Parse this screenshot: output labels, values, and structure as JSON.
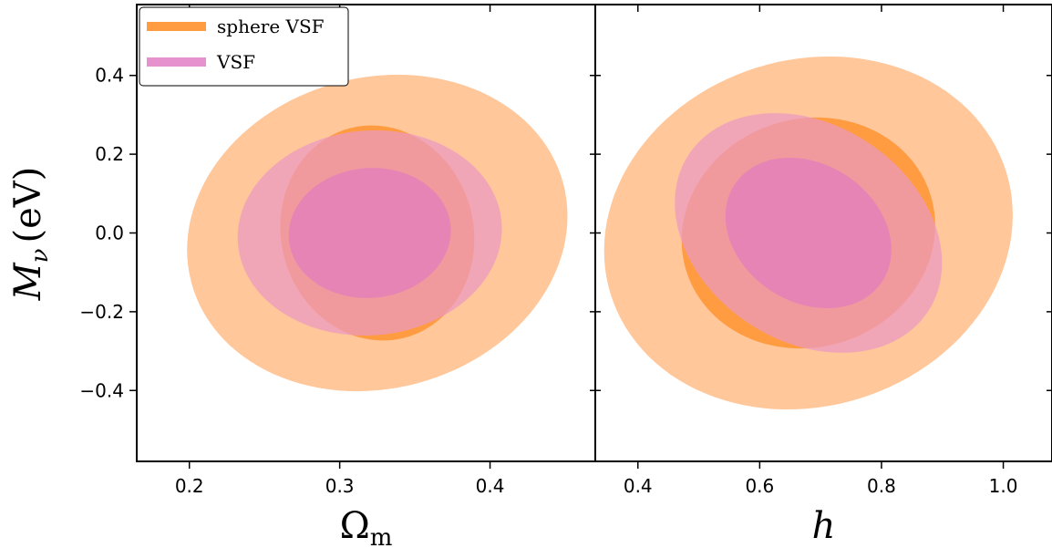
{
  "chart_data": {
    "type": "contour",
    "legend": {
      "placement": "top-left",
      "entries": [
        {
          "label": "sphere VSF",
          "color": "#ff9c42"
        },
        {
          "label": "VSF",
          "color": "#e592cf"
        }
      ]
    },
    "y_axis": {
      "label_main": "M",
      "label_sub": "ν",
      "label_unit": "(eV)",
      "ylim": [
        -0.58,
        0.58
      ],
      "ticks": [
        -0.4,
        -0.2,
        0.0,
        0.2,
        0.4
      ],
      "tick_labels": [
        "−0.4",
        "−0.2",
        "0.0",
        "0.2",
        "0.4"
      ]
    },
    "panels": [
      {
        "id": "omega_m",
        "xlabel_main": "Ω",
        "xlabel_sub": "m",
        "xlim": [
          0.165,
          0.47
        ],
        "ticks": [
          0.2,
          0.3,
          0.4
        ],
        "tick_labels": [
          "0.2",
          "0.3",
          "0.4"
        ],
        "contours": [
          {
            "series": "sphere VSF",
            "level": "outer",
            "color": "#ffc79a",
            "opacity": 1.0,
            "cx": 0.325,
            "cy": 0.0,
            "rx": 0.128,
            "ry": 0.395,
            "tilt": 0.26
          },
          {
            "series": "sphere VSF",
            "level": "inner",
            "color": "#ff9c42",
            "opacity": 1.0,
            "cx": 0.325,
            "cy": 0.0,
            "rx": 0.064,
            "ry": 0.275,
            "tilt": 0.26
          },
          {
            "series": "VSF",
            "level": "outer",
            "color": "#ec9ac2",
            "opacity": 0.72,
            "cx": 0.32,
            "cy": 0.0,
            "rx": 0.088,
            "ry": 0.26,
            "tilt": 0.08
          },
          {
            "series": "VSF",
            "level": "inner",
            "color": "#e480b8",
            "opacity": 0.85,
            "cx": 0.32,
            "cy": 0.0,
            "rx": 0.054,
            "ry": 0.165,
            "tilt": 0.08
          }
        ]
      },
      {
        "id": "h",
        "xlabel_main": "h",
        "xlabel_sub": "",
        "xlim": [
          0.33,
          1.08
        ],
        "ticks": [
          0.4,
          0.6,
          0.8,
          1.0
        ],
        "tick_labels": [
          "0.4",
          "0.6",
          "0.8",
          "1.0"
        ],
        "contours": [
          {
            "series": "sphere VSF",
            "level": "outer",
            "color": "#ffc79a",
            "opacity": 1.0,
            "cx": 0.68,
            "cy": 0.0,
            "rx": 0.34,
            "ry": 0.44,
            "tilt": 0.3
          },
          {
            "series": "sphere VSF",
            "level": "inner",
            "color": "#ff9c42",
            "opacity": 1.0,
            "cx": 0.68,
            "cy": 0.0,
            "rx": 0.21,
            "ry": 0.29,
            "tilt": 0.3
          },
          {
            "series": "VSF",
            "level": "outer",
            "color": "#ec9ac2",
            "opacity": 0.72,
            "cx": 0.68,
            "cy": 0.0,
            "rx": 0.235,
            "ry": 0.275,
            "tilt": -0.58
          },
          {
            "series": "VSF",
            "level": "inner",
            "color": "#e480b8",
            "opacity": 0.85,
            "cx": 0.68,
            "cy": 0.0,
            "rx": 0.145,
            "ry": 0.175,
            "tilt": -0.58
          }
        ]
      }
    ]
  }
}
